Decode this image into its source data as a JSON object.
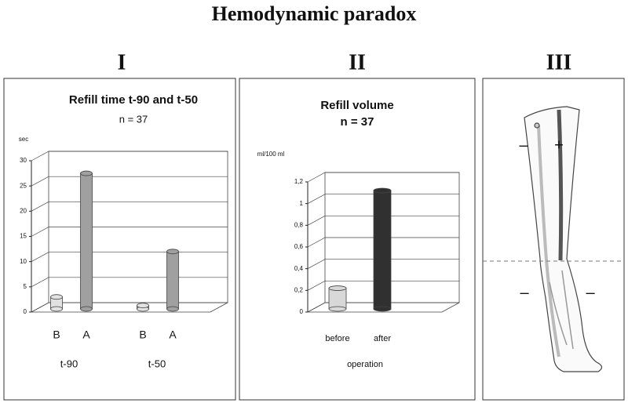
{
  "title": "Hemodynamic paradox",
  "panels": [
    "I",
    "II",
    "III"
  ],
  "diagram": {
    "signs": [
      "–",
      "+",
      "–",
      "–"
    ]
  },
  "chart_data": [
    {
      "type": "bar",
      "title": "Refill time t-90  and t-50",
      "subtitle": "n = 37",
      "y_label": "sec",
      "categories": [
        "B",
        "A",
        "B",
        "A"
      ],
      "groups": [
        "t-90",
        "t-50"
      ],
      "values": [
        3,
        27.5,
        1.3,
        12
      ],
      "colors": [
        "#e2e2e2",
        "#a0a0a0",
        "#e2e2e2",
        "#a0a0a0"
      ],
      "ylim": [
        0,
        30
      ],
      "yticks": [
        0,
        5,
        10,
        15,
        20,
        25,
        30
      ],
      "grid": true
    },
    {
      "type": "bar",
      "title": "Refill volume",
      "subtitle": "n = 37",
      "y_label": "ml/100 ml",
      "x_label": "operation",
      "categories": [
        "before",
        "after"
      ],
      "values": [
        0.22,
        1.12
      ],
      "colors": [
        "#d8d8d8",
        "#303030"
      ],
      "ylim": [
        0,
        1.2
      ],
      "yticks": [
        0,
        {
          "value": 0.2,
          "label": "0,2"
        },
        {
          "value": 0.4,
          "label": "0,4"
        },
        {
          "value": 0.6,
          "label": "0,6"
        },
        {
          "value": 0.8,
          "label": "0,8"
        },
        1,
        {
          "value": 1.2,
          "label": "1,2"
        }
      ],
      "grid": true
    }
  ]
}
